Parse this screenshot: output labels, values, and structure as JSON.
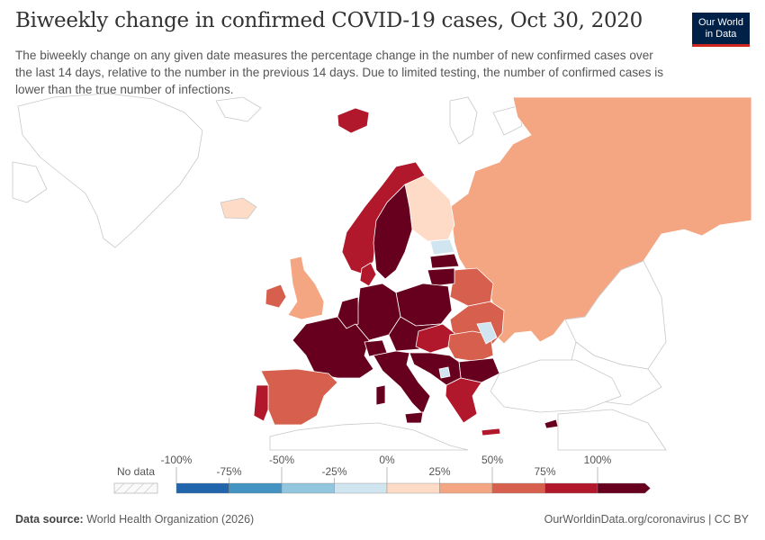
{
  "header": {
    "title": "Biweekly change in confirmed COVID-19 cases, Oct 30, 2020",
    "subtitle": "The biweekly change on any given date measures the percentage change in the number of new confirmed cases over the last 14 days, relative to the number in the previous 14 days. Due to limited testing, the number of confirmed cases is lower than the true number of infections.",
    "logo_line1": "Our World",
    "logo_line2": "in Data"
  },
  "legend": {
    "no_data_label": "No data",
    "upper_ticks": [
      "-100%",
      "-50%",
      "0%",
      "50%",
      "100%"
    ],
    "lower_ticks": [
      "-75%",
      "-25%",
      "25%",
      "75%"
    ],
    "bins": [
      {
        "from": -100,
        "to": -75,
        "color": "#2166ac"
      },
      {
        "from": -75,
        "to": -50,
        "color": "#4393c3"
      },
      {
        "from": -50,
        "to": -25,
        "color": "#92c5de"
      },
      {
        "from": -25,
        "to": 0,
        "color": "#d1e5f0"
      },
      {
        "from": 0,
        "to": 25,
        "color": "#fddbc7"
      },
      {
        "from": 25,
        "to": 50,
        "color": "#f4a582"
      },
      {
        "from": 50,
        "to": 75,
        "color": "#d6604d"
      },
      {
        "from": 75,
        "to": 100,
        "color": "#b2182b"
      },
      {
        "from": 100,
        "to": 125,
        "color": "#67001f"
      }
    ]
  },
  "footer": {
    "source_label": "Data source:",
    "source_text": "World Health Organization (2026)",
    "url": "OurWorldinData.org/coronavirus | CC BY"
  },
  "colors": {
    "no_data_fill": "#ffffff",
    "border": "#c8c8c8"
  }
}
